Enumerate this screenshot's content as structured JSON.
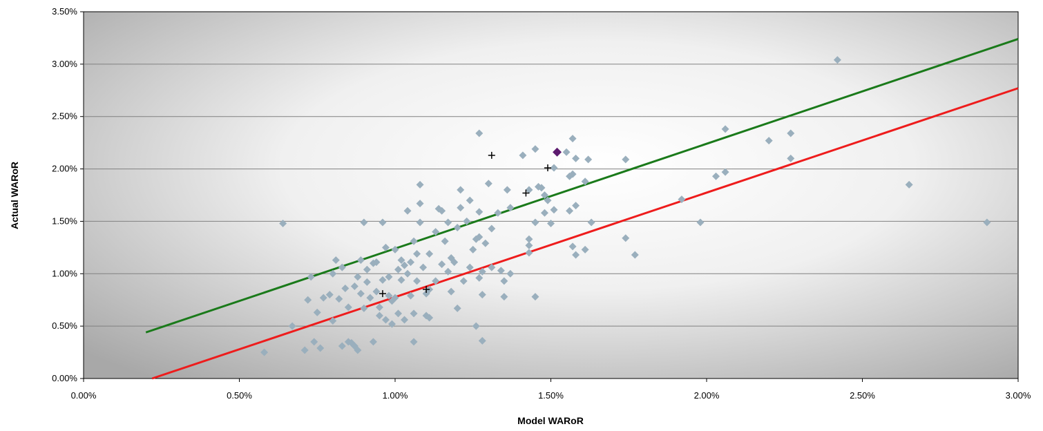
{
  "chart_data": {
    "type": "scatter",
    "xlabel": "Model WARoR",
    "ylabel": "Actual WARoR",
    "xlim": [
      0,
      0.03
    ],
    "ylim": [
      0,
      0.035
    ],
    "x_ticks": [
      "0.00%",
      "0.50%",
      "1.00%",
      "1.50%",
      "2.00%",
      "2.50%",
      "3.00%"
    ],
    "y_ticks": [
      "0.00%",
      "0.50%",
      "1.00%",
      "1.50%",
      "2.00%",
      "2.50%",
      "3.00%",
      "3.50%"
    ],
    "grid": "horizontal",
    "legend": "none",
    "series": [
      {
        "marker": "diamond",
        "color": "#9aafbd",
        "points": [
          [
            0.0058,
            0.0025
          ],
          [
            0.0064,
            0.0148
          ],
          [
            0.0067,
            0.005
          ],
          [
            0.0071,
            0.0027
          ],
          [
            0.0072,
            0.0075
          ],
          [
            0.0073,
            0.0097
          ],
          [
            0.0074,
            0.0035
          ],
          [
            0.0075,
            0.0063
          ],
          [
            0.0076,
            0.0029
          ],
          [
            0.0077,
            0.0077
          ],
          [
            0.0079,
            0.008
          ],
          [
            0.008,
            0.0055
          ],
          [
            0.008,
            0.01
          ],
          [
            0.0081,
            0.0113
          ],
          [
            0.0082,
            0.0076
          ],
          [
            0.0083,
            0.0106
          ],
          [
            0.0083,
            0.0031
          ],
          [
            0.0084,
            0.0086
          ],
          [
            0.0085,
            0.0068
          ],
          [
            0.0085,
            0.0035
          ],
          [
            0.0086,
            0.0034
          ],
          [
            0.0087,
            0.0031
          ],
          [
            0.0087,
            0.0088
          ],
          [
            0.0088,
            0.0027
          ],
          [
            0.0088,
            0.0097
          ],
          [
            0.0089,
            0.0081
          ],
          [
            0.0089,
            0.0113
          ],
          [
            0.009,
            0.0149
          ],
          [
            0.009,
            0.0067
          ],
          [
            0.0091,
            0.0104
          ],
          [
            0.0091,
            0.0092
          ],
          [
            0.0092,
            0.0077
          ],
          [
            0.0093,
            0.011
          ],
          [
            0.0093,
            0.0035
          ],
          [
            0.0094,
            0.0111
          ],
          [
            0.0094,
            0.0083
          ],
          [
            0.0095,
            0.0068
          ],
          [
            0.0095,
            0.006
          ],
          [
            0.0096,
            0.0149
          ],
          [
            0.0096,
            0.0094
          ],
          [
            0.0097,
            0.0125
          ],
          [
            0.0097,
            0.0056
          ],
          [
            0.0098,
            0.0079
          ],
          [
            0.0098,
            0.0097
          ],
          [
            0.0099,
            0.0074
          ],
          [
            0.0099,
            0.0052
          ],
          [
            0.01,
            0.0123
          ],
          [
            0.01,
            0.0077
          ],
          [
            0.0101,
            0.0104
          ],
          [
            0.0101,
            0.0062
          ],
          [
            0.0102,
            0.0113
          ],
          [
            0.0102,
            0.0094
          ],
          [
            0.0103,
            0.0108
          ],
          [
            0.0103,
            0.0056
          ],
          [
            0.0104,
            0.016
          ],
          [
            0.0104,
            0.01
          ],
          [
            0.0105,
            0.0079
          ],
          [
            0.0105,
            0.0111
          ],
          [
            0.0106,
            0.0131
          ],
          [
            0.0106,
            0.0062
          ],
          [
            0.0106,
            0.0035
          ],
          [
            0.0107,
            0.0119
          ],
          [
            0.0107,
            0.0093
          ],
          [
            0.0108,
            0.0185
          ],
          [
            0.0108,
            0.0167
          ],
          [
            0.0108,
            0.0149
          ],
          [
            0.0109,
            0.0106
          ],
          [
            0.011,
            0.0081
          ],
          [
            0.011,
            0.006
          ],
          [
            0.0111,
            0.0119
          ],
          [
            0.0111,
            0.0085
          ],
          [
            0.0111,
            0.0058
          ],
          [
            0.0113,
            0.014
          ],
          [
            0.0113,
            0.0093
          ],
          [
            0.0114,
            0.0162
          ],
          [
            0.0115,
            0.016
          ],
          [
            0.0115,
            0.0109
          ],
          [
            0.0116,
            0.0131
          ],
          [
            0.0117,
            0.0149
          ],
          [
            0.0117,
            0.0102
          ],
          [
            0.0118,
            0.0115
          ],
          [
            0.0118,
            0.0083
          ],
          [
            0.0119,
            0.0111
          ],
          [
            0.012,
            0.0144
          ],
          [
            0.012,
            0.0067
          ],
          [
            0.0121,
            0.018
          ],
          [
            0.0121,
            0.0163
          ],
          [
            0.0122,
            0.0093
          ],
          [
            0.0123,
            0.015
          ],
          [
            0.0124,
            0.0106
          ],
          [
            0.0124,
            0.017
          ],
          [
            0.0125,
            0.0123
          ],
          [
            0.0126,
            0.0133
          ],
          [
            0.0126,
            0.005
          ],
          [
            0.0127,
            0.0234
          ],
          [
            0.0127,
            0.0159
          ],
          [
            0.0127,
            0.0135
          ],
          [
            0.0127,
            0.0096
          ],
          [
            0.0128,
            0.0102
          ],
          [
            0.0128,
            0.008
          ],
          [
            0.0128,
            0.0036
          ],
          [
            0.0129,
            0.0129
          ],
          [
            0.013,
            0.0186
          ],
          [
            0.0131,
            0.0143
          ],
          [
            0.0131,
            0.0106
          ],
          [
            0.0133,
            0.0158
          ],
          [
            0.0134,
            0.0103
          ],
          [
            0.0135,
            0.0093
          ],
          [
            0.0135,
            0.0078
          ],
          [
            0.0136,
            0.018
          ],
          [
            0.0137,
            0.0163
          ],
          [
            0.0137,
            0.01
          ],
          [
            0.0141,
            0.0213
          ],
          [
            0.0143,
            0.018
          ],
          [
            0.0143,
            0.0133
          ],
          [
            0.0143,
            0.0127
          ],
          [
            0.0143,
            0.012
          ],
          [
            0.0145,
            0.0219
          ],
          [
            0.0145,
            0.0149
          ],
          [
            0.0145,
            0.0078
          ],
          [
            0.0146,
            0.0183
          ],
          [
            0.0147,
            0.0182
          ],
          [
            0.0148,
            0.0175
          ],
          [
            0.0148,
            0.0158
          ],
          [
            0.0149,
            0.017
          ],
          [
            0.015,
            0.0148
          ],
          [
            0.0151,
            0.0201
          ],
          [
            0.0151,
            0.0161
          ],
          [
            0.0155,
            0.0216
          ],
          [
            0.0156,
            0.0193
          ],
          [
            0.0156,
            0.016
          ],
          [
            0.0157,
            0.0229
          ],
          [
            0.0157,
            0.0195
          ],
          [
            0.0157,
            0.0126
          ],
          [
            0.0158,
            0.021
          ],
          [
            0.0158,
            0.0165
          ],
          [
            0.0158,
            0.0118
          ],
          [
            0.0161,
            0.0188
          ],
          [
            0.0161,
            0.0123
          ],
          [
            0.0162,
            0.0209
          ],
          [
            0.0163,
            0.0149
          ],
          [
            0.0174,
            0.0209
          ],
          [
            0.0174,
            0.0134
          ],
          [
            0.0177,
            0.0118
          ],
          [
            0.0192,
            0.0171
          ],
          [
            0.0198,
            0.0149
          ],
          [
            0.0203,
            0.0193
          ],
          [
            0.0206,
            0.0238
          ],
          [
            0.0206,
            0.0197
          ],
          [
            0.022,
            0.0227
          ],
          [
            0.0227,
            0.0234
          ],
          [
            0.0227,
            0.021
          ],
          [
            0.0242,
            0.0304
          ],
          [
            0.0265,
            0.0185
          ],
          [
            0.029,
            0.0149
          ]
        ]
      },
      {
        "marker": "plus",
        "color": "#000000",
        "points": [
          [
            0.0096,
            0.0081
          ],
          [
            0.011,
            0.0085
          ],
          [
            0.0131,
            0.0213
          ],
          [
            0.0142,
            0.0177
          ],
          [
            0.0149,
            0.0201
          ]
        ]
      },
      {
        "marker": "diamond",
        "color": "#5c1a6e",
        "points": [
          [
            0.0152,
            0.0216
          ]
        ]
      }
    ],
    "lines": [
      {
        "color": "#1a7a1a",
        "points": [
          [
            0.002,
            0.0044
          ],
          [
            0.03,
            0.0324
          ]
        ]
      },
      {
        "color": "#ee1c1c",
        "points": [
          [
            0.0022,
            0.0
          ],
          [
            0.03,
            0.0277
          ]
        ]
      }
    ]
  }
}
